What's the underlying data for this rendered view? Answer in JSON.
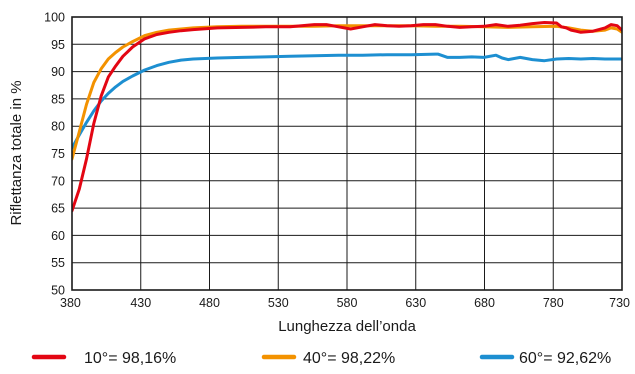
{
  "chart_data": {
    "type": "line",
    "xlabel": "Lunghezza dell’onda",
    "ylabel": "Riflettanza totale in %",
    "xlim": [
      380,
      730
    ],
    "ylim": [
      50,
      100
    ],
    "x_ticks": [
      "380",
      "430",
      "480",
      "530",
      "580",
      "630",
      "680",
      "730"
    ],
    "x_ticks_top_row": [
      "780"
    ],
    "x_tick_layout_note": "",
    "x_tick_labels": [
      "380",
      "430",
      "480",
      "530",
      "580",
      "630",
      "680",
      "780",
      "730"
    ],
    "y_ticks": [
      "50",
      "55",
      "60",
      "65",
      "70",
      "75",
      "80",
      "85",
      "90",
      "95",
      "100"
    ],
    "grid": true,
    "legend_position": "bottom",
    "series": [
      {
        "name": "10°= 98,16%",
        "color": "#e30613",
        "x": [
          380,
          386,
          392,
          398,
          404,
          410,
          416,
          422,
          430,
          440,
          450,
          460,
          470,
          480,
          500,
          520,
          540,
          560,
          580,
          590,
          600,
          610,
          620,
          630,
          640,
          650,
          660,
          670,
          680,
          690,
          700,
          710,
          720,
          730,
          740,
          750,
          760,
          770,
          780,
          784,
          788,
          792,
          796,
          800,
          810,
          820,
          825,
          830,
          834
        ],
        "y": [
          64.5,
          68.5,
          74,
          80.5,
          85.5,
          89,
          91,
          92.8,
          94.5,
          96.0,
          96.8,
          97.2,
          97.5,
          97.7,
          98.0,
          98.1,
          98.2,
          98.2,
          98.6,
          98.6,
          98.2,
          97.8,
          98.2,
          98.6,
          98.4,
          98.3,
          98.4,
          98.6,
          98.6,
          98.3,
          98.1,
          98.2,
          98.3,
          98.6,
          98.3,
          98.5,
          98.8,
          99.0,
          98.9,
          98.2,
          98.0,
          97.6,
          97.4,
          97.2,
          97.4,
          98.0,
          98.6,
          98.4,
          97.6
        ]
      },
      {
        "name": "40°= 98,22%",
        "color": "#f39200",
        "x": [
          380,
          386,
          392,
          398,
          404,
          410,
          416,
          422,
          430,
          440,
          450,
          460,
          470,
          480,
          500,
          520,
          540,
          560,
          580,
          600,
          620,
          640,
          660,
          680,
          700,
          720,
          740,
          760,
          780,
          790,
          800,
          810,
          820,
          825,
          830,
          834
        ],
        "y": [
          74,
          79,
          84,
          88,
          90.5,
          92.3,
          93.5,
          94.5,
          95.5,
          96.6,
          97.2,
          97.6,
          97.8,
          98.0,
          98.2,
          98.3,
          98.3,
          98.3,
          98.3,
          98.4,
          98.4,
          98.4,
          98.4,
          98.3,
          98.3,
          98.2,
          98.1,
          98.2,
          98.3,
          98.0,
          97.6,
          97.4,
          97.6,
          98.0,
          97.8,
          97.2
        ]
      },
      {
        "name": "60°= 92,62%",
        "color": "#1d8fd1",
        "x": [
          380,
          386,
          392,
          398,
          404,
          410,
          416,
          422,
          430,
          440,
          450,
          460,
          470,
          480,
          500,
          520,
          540,
          560,
          580,
          600,
          620,
          640,
          660,
          680,
          682,
          690,
          700,
          710,
          720,
          730,
          735,
          740,
          750,
          760,
          770,
          780,
          790,
          800,
          810,
          820,
          834
        ],
        "y": [
          76,
          78.4,
          80.7,
          82.8,
          84.6,
          86.0,
          87.2,
          88.2,
          89.2,
          90.3,
          91.1,
          91.7,
          92.1,
          92.3,
          92.5,
          92.6,
          92.7,
          92.8,
          92.9,
          93.0,
          93.0,
          93.1,
          93.1,
          93.2,
          93.2,
          92.6,
          92.6,
          92.7,
          92.6,
          93.0,
          92.5,
          92.2,
          92.6,
          92.2,
          92.0,
          92.3,
          92.4,
          92.3,
          92.4,
          92.3,
          92.3
        ]
      }
    ]
  }
}
